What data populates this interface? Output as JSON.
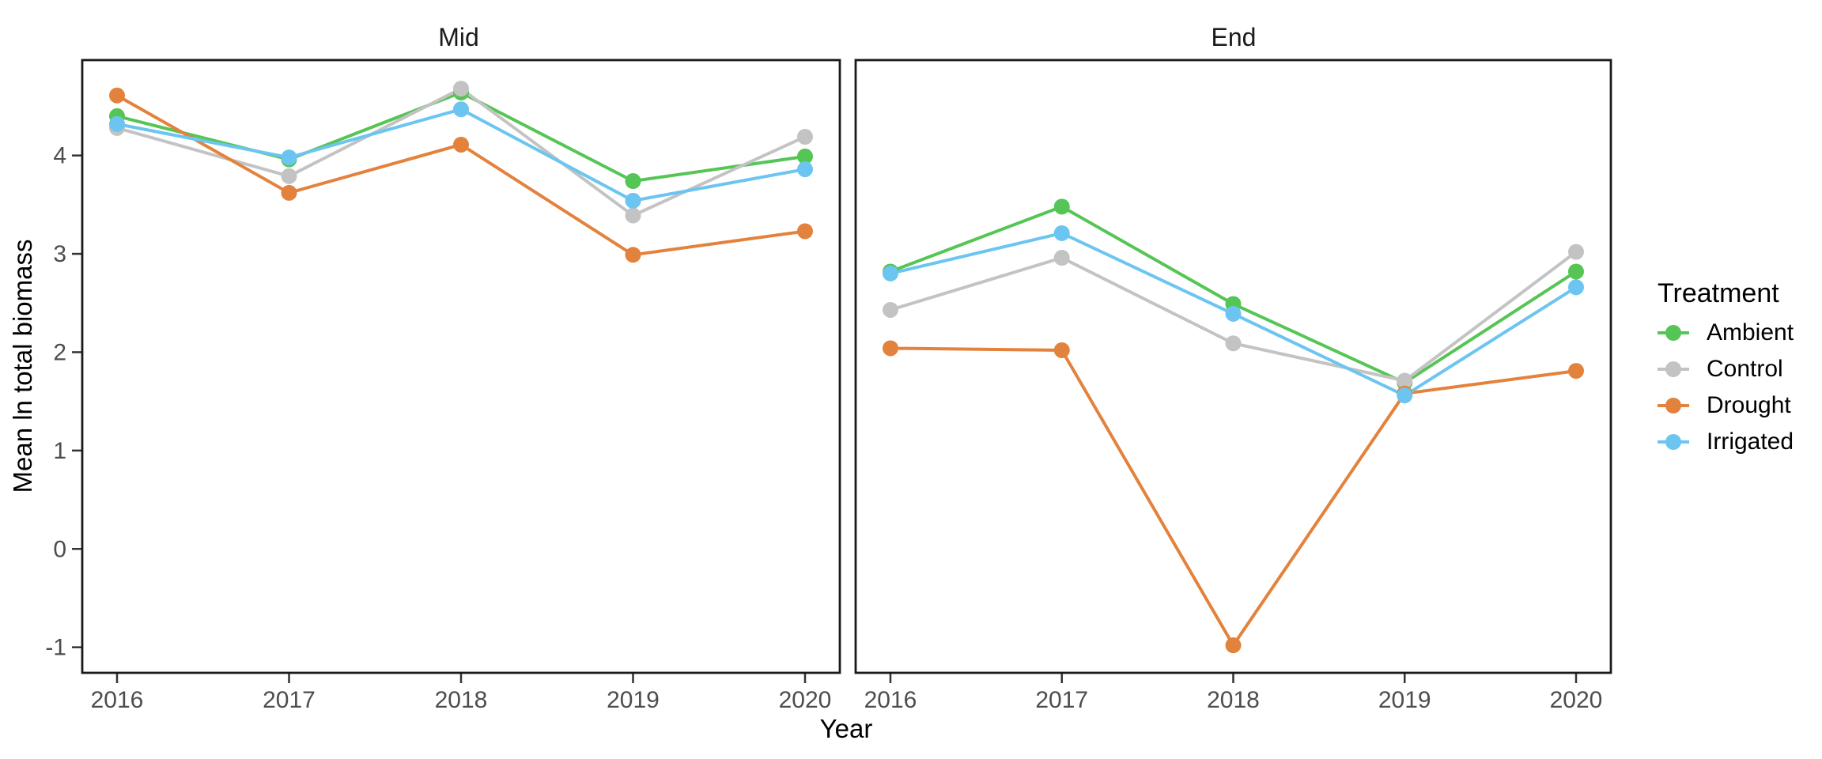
{
  "chart_data": {
    "type": "line",
    "xlabel": "Year",
    "ylabel": "Mean ln total biomass",
    "x_categories": [
      "2016",
      "2017",
      "2018",
      "2019",
      "2020"
    ],
    "y_ticks": [
      4,
      3,
      2,
      1,
      0,
      -1
    ],
    "ylim": [
      -1.26,
      4.97
    ],
    "grid": "off",
    "legend": {
      "title": "Treatment",
      "position": "right"
    },
    "facets": [
      {
        "title": "Mid",
        "key": "mid"
      },
      {
        "title": "End",
        "key": "end"
      }
    ],
    "series": [
      {
        "name": "Ambient",
        "color": "#55c555",
        "mid": [
          4.4,
          3.96,
          4.64,
          3.74,
          3.99
        ],
        "end": [
          2.82,
          3.48,
          2.49,
          1.69,
          2.82
        ]
      },
      {
        "name": "Control",
        "color": "#c3c3c3",
        "mid": [
          4.28,
          3.79,
          4.68,
          3.39,
          4.19
        ],
        "end": [
          2.43,
          2.96,
          2.09,
          1.71,
          3.02
        ]
      },
      {
        "name": "Drought",
        "color": "#e3823c",
        "mid": [
          4.61,
          3.62,
          4.11,
          2.99,
          3.23
        ],
        "end": [
          2.04,
          2.02,
          -0.98,
          1.58,
          1.81
        ]
      },
      {
        "name": "Irrigated",
        "color": "#6cc5f0",
        "mid": [
          4.32,
          3.98,
          4.47,
          3.54,
          3.86
        ],
        "end": [
          2.8,
          3.21,
          2.39,
          1.56,
          2.66
        ]
      }
    ],
    "style": {
      "panel_border_color": "#1a1a1a",
      "tick_color": "#333333",
      "tick_label_color": "#4d4d4d",
      "background": "#ffffff"
    }
  }
}
